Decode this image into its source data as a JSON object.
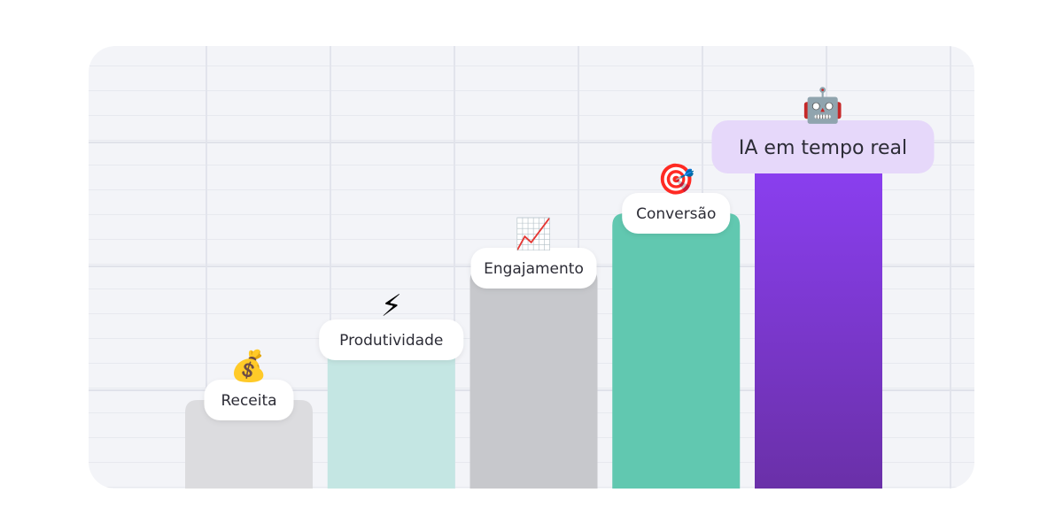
{
  "chart_data": {
    "type": "bar",
    "categories": [
      "Receita",
      "Produtividade",
      "Engajamento",
      "Conversão",
      "IA em tempo real"
    ],
    "values": [
      1,
      2,
      3,
      4,
      5
    ],
    "icons": [
      "money-bag-icon",
      "lightning-icon",
      "chart-increasing-icon",
      "target-icon",
      "robot-icon"
    ],
    "colors": [
      "#dcdcdf",
      "#c4e6e3",
      "#c7c8cc",
      "#61c8b0",
      "#8b3ff2"
    ],
    "highlight_color": "#e6d8fa",
    "highlight_gradient_end": "#6a30a8",
    "title": "",
    "xlabel": "",
    "ylabel": "",
    "grid": true,
    "axes_visible": false
  }
}
